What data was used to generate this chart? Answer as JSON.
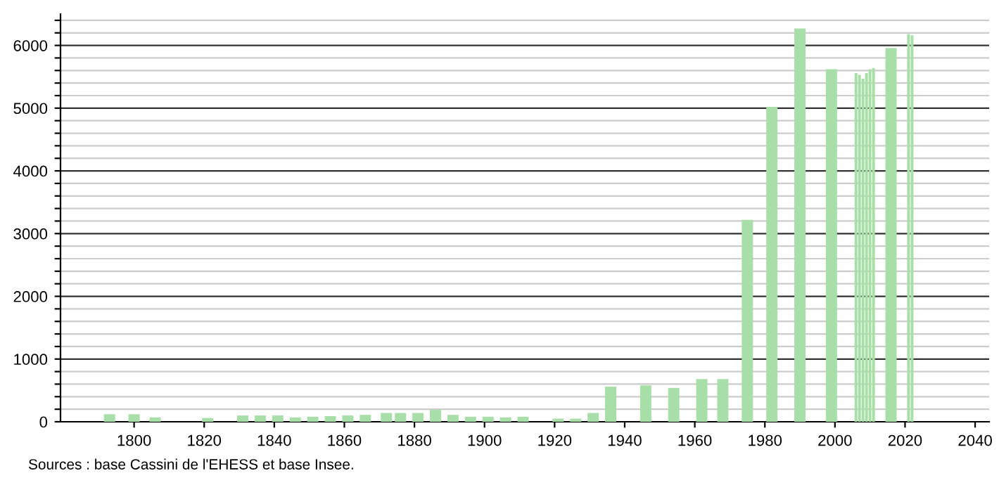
{
  "chart_data": {
    "type": "bar",
    "x": [
      1793,
      1800,
      1806,
      1821,
      1831,
      1836,
      1841,
      1846,
      1851,
      1856,
      1861,
      1866,
      1872,
      1876,
      1881,
      1886,
      1891,
      1896,
      1901,
      1906,
      1911,
      1921,
      1926,
      1931,
      1936,
      1946,
      1954,
      1962,
      1968,
      1975,
      1982,
      1990,
      1999,
      2006,
      2007,
      2008,
      2009,
      2010,
      2011,
      2016,
      2021,
      2022
    ],
    "values": [
      120,
      120,
      70,
      60,
      100,
      100,
      100,
      70,
      80,
      90,
      100,
      110,
      140,
      140,
      140,
      190,
      110,
      80,
      80,
      70,
      80,
      50,
      50,
      140,
      560,
      580,
      540,
      680,
      680,
      3220,
      5020,
      6270,
      5620,
      5560,
      5530,
      5470,
      5560,
      5620,
      5640,
      5960,
      6180,
      6160
    ],
    "color": "#a8dfa8",
    "xlim": [
      1779,
      2044
    ],
    "xticks": [
      1800,
      1820,
      1840,
      1860,
      1880,
      1900,
      1920,
      1940,
      1960,
      1980,
      2000,
      2020,
      2040
    ],
    "ylim": [
      0,
      6500
    ],
    "yticks": [
      0,
      {
        "value": 200,
        "label": null
      },
      {
        "value": 400,
        "label": null
      },
      {
        "value": 600,
        "label": null
      },
      {
        "value": 800,
        "label": null
      },
      1000,
      {
        "value": 1200,
        "label": null
      },
      {
        "value": 1400,
        "label": null
      },
      {
        "value": 1600,
        "label": null
      },
      {
        "value": 1800,
        "label": null
      },
      2000,
      {
        "value": 2200,
        "label": null
      },
      {
        "value": 2400,
        "label": null
      },
      {
        "value": 2600,
        "label": null
      },
      {
        "value": 2800,
        "label": null
      },
      3000,
      {
        "value": 3200,
        "label": null
      },
      {
        "value": 3400,
        "label": null
      },
      {
        "value": 3600,
        "label": null
      },
      {
        "value": 3800,
        "label": null
      },
      4000,
      {
        "value": 4200,
        "label": null
      },
      {
        "value": 4400,
        "label": null
      },
      {
        "value": 4600,
        "label": null
      },
      {
        "value": 4800,
        "label": null
      },
      5000,
      {
        "value": 5200,
        "label": null
      },
      {
        "value": 5400,
        "label": null
      },
      {
        "value": 5600,
        "label": null
      },
      {
        "value": 5800,
        "label": null
      },
      6000,
      {
        "value": 6200,
        "label": null
      },
      {
        "value": 6400,
        "label": null
      }
    ],
    "grid": "y",
    "annotations": [
      "Sources : base Cassini de l'EHESS et base Insee."
    ]
  }
}
